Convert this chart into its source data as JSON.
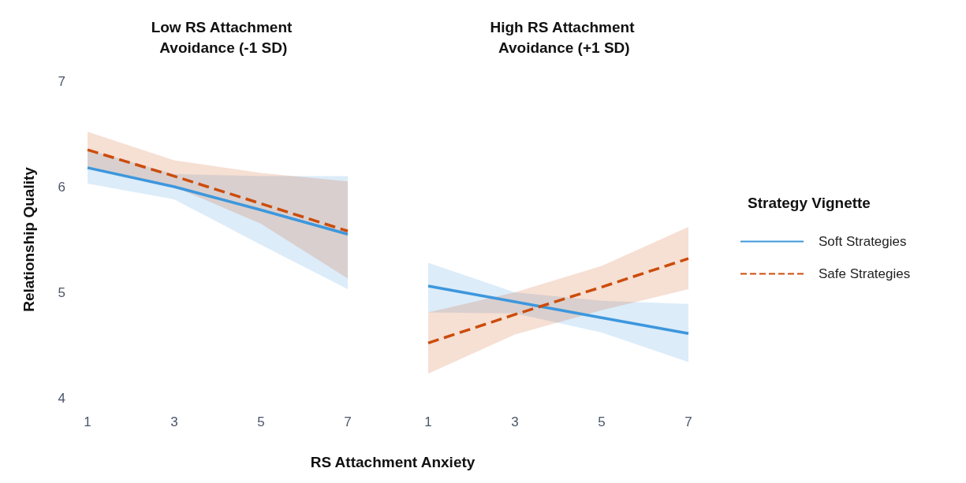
{
  "chart_data": [
    {
      "type": "line",
      "title": "Low RS Attachment\n Avoidance (-1 SD)",
      "xlabel": "RS Attachment Anxiety",
      "ylabel": "Relationship Quality",
      "x": [
        1,
        3,
        5,
        7
      ],
      "xlim": [
        1,
        7
      ],
      "xticks": [
        1,
        3,
        5,
        7
      ],
      "ylim": [
        4,
        7
      ],
      "yticks": [
        4,
        5,
        6,
        7
      ],
      "grid": false,
      "marker": "none",
      "series": [
        {
          "color": "#3d97dd",
          "line_style": "solid",
          "values": [
            6.18,
            6.0,
            5.78,
            5.55
          ],
          "lower": [
            6.03,
            5.88,
            5.45,
            5.03
          ],
          "upper": [
            6.35,
            6.12,
            6.1,
            6.1
          ]
        },
        {
          "color": "#cc4c0b",
          "line_style": "dashed",
          "values": [
            6.35,
            6.1,
            5.84,
            5.58
          ],
          "lower": [
            6.18,
            6.0,
            5.65,
            5.13
          ],
          "upper": [
            6.52,
            6.25,
            6.13,
            6.05
          ]
        }
      ]
    },
    {
      "type": "line",
      "title": "High RS Attachment\n Avoidance (+1 SD)",
      "legend_title": "Strategy Vignette",
      "legend": "right",
      "tick_labels": "x",
      "x": [
        1,
        3,
        5,
        7
      ],
      "xlim": [
        1,
        7
      ],
      "xticks": [
        1,
        3,
        5,
        7
      ],
      "ylim": [
        4,
        7
      ],
      "yticks": [
        4,
        5,
        6,
        7
      ],
      "grid": false,
      "marker": "none",
      "series": [
        {
          "name": "Soft Strategies",
          "color": "#3d97dd",
          "line_style": "solid",
          "values": [
            5.06,
            4.91,
            4.76,
            4.61
          ],
          "lower": [
            4.81,
            4.8,
            4.62,
            4.34
          ],
          "upper": [
            5.28,
            5.0,
            4.92,
            4.89
          ]
        },
        {
          "name": "Safe Strategies",
          "color": "#cc4c0b",
          "line_style": "dashed",
          "values": [
            4.52,
            4.79,
            5.05,
            5.32
          ],
          "lower": [
            4.23,
            4.6,
            4.83,
            5.03
          ],
          "upper": [
            4.81,
            5.0,
            5.25,
            5.62
          ]
        }
      ]
    }
  ]
}
